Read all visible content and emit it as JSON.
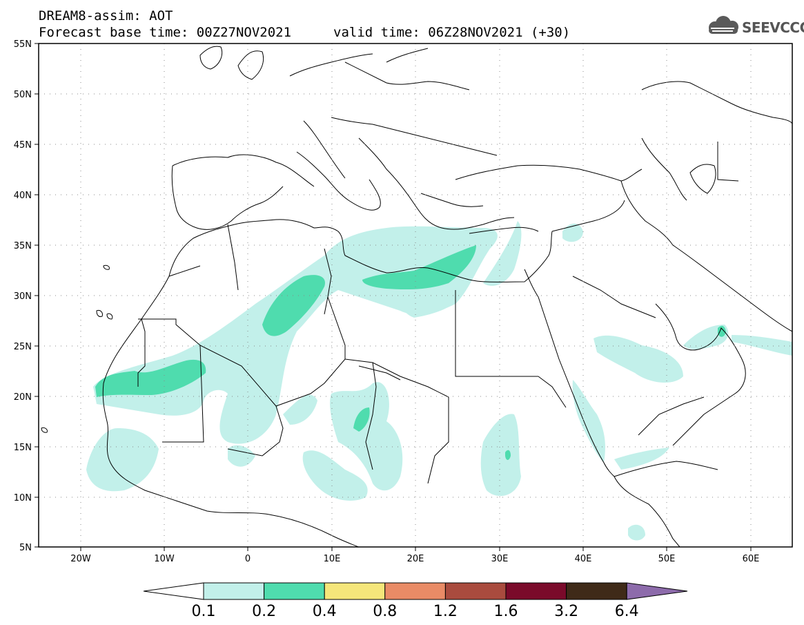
{
  "title_line1": "DREAM8-assim: AOT",
  "title_line2": "Forecast base time: 00Z27NOV2021",
  "valid_time": "valid time: 06Z28NOV2021 (+30)",
  "logo_text": "SEEVCCC",
  "lat_labels": [
    "55N",
    "50N",
    "45N",
    "40N",
    "35N",
    "30N",
    "25N",
    "20N",
    "15N",
    "10N",
    "5N"
  ],
  "lon_labels": [
    "20W",
    "10W",
    "0",
    "10E",
    "20E",
    "30E",
    "40E",
    "50E",
    "60E"
  ],
  "colorbar": {
    "labels": [
      "0.1",
      "0.2",
      "0.4",
      "0.8",
      "1.2",
      "1.6",
      "3.2",
      "6.4"
    ],
    "colors": [
      "#ffffff",
      "#c2f0ea",
      "#4fdcae",
      "#f5e67a",
      "#e98b66",
      "#a94b3e",
      "#7a0a2a",
      "#3f2a18",
      "#8d6bab"
    ]
  },
  "map": {
    "extent_lon": [
      -25,
      65
    ],
    "extent_lat": [
      5,
      55
    ],
    "variable": "AOT"
  }
}
